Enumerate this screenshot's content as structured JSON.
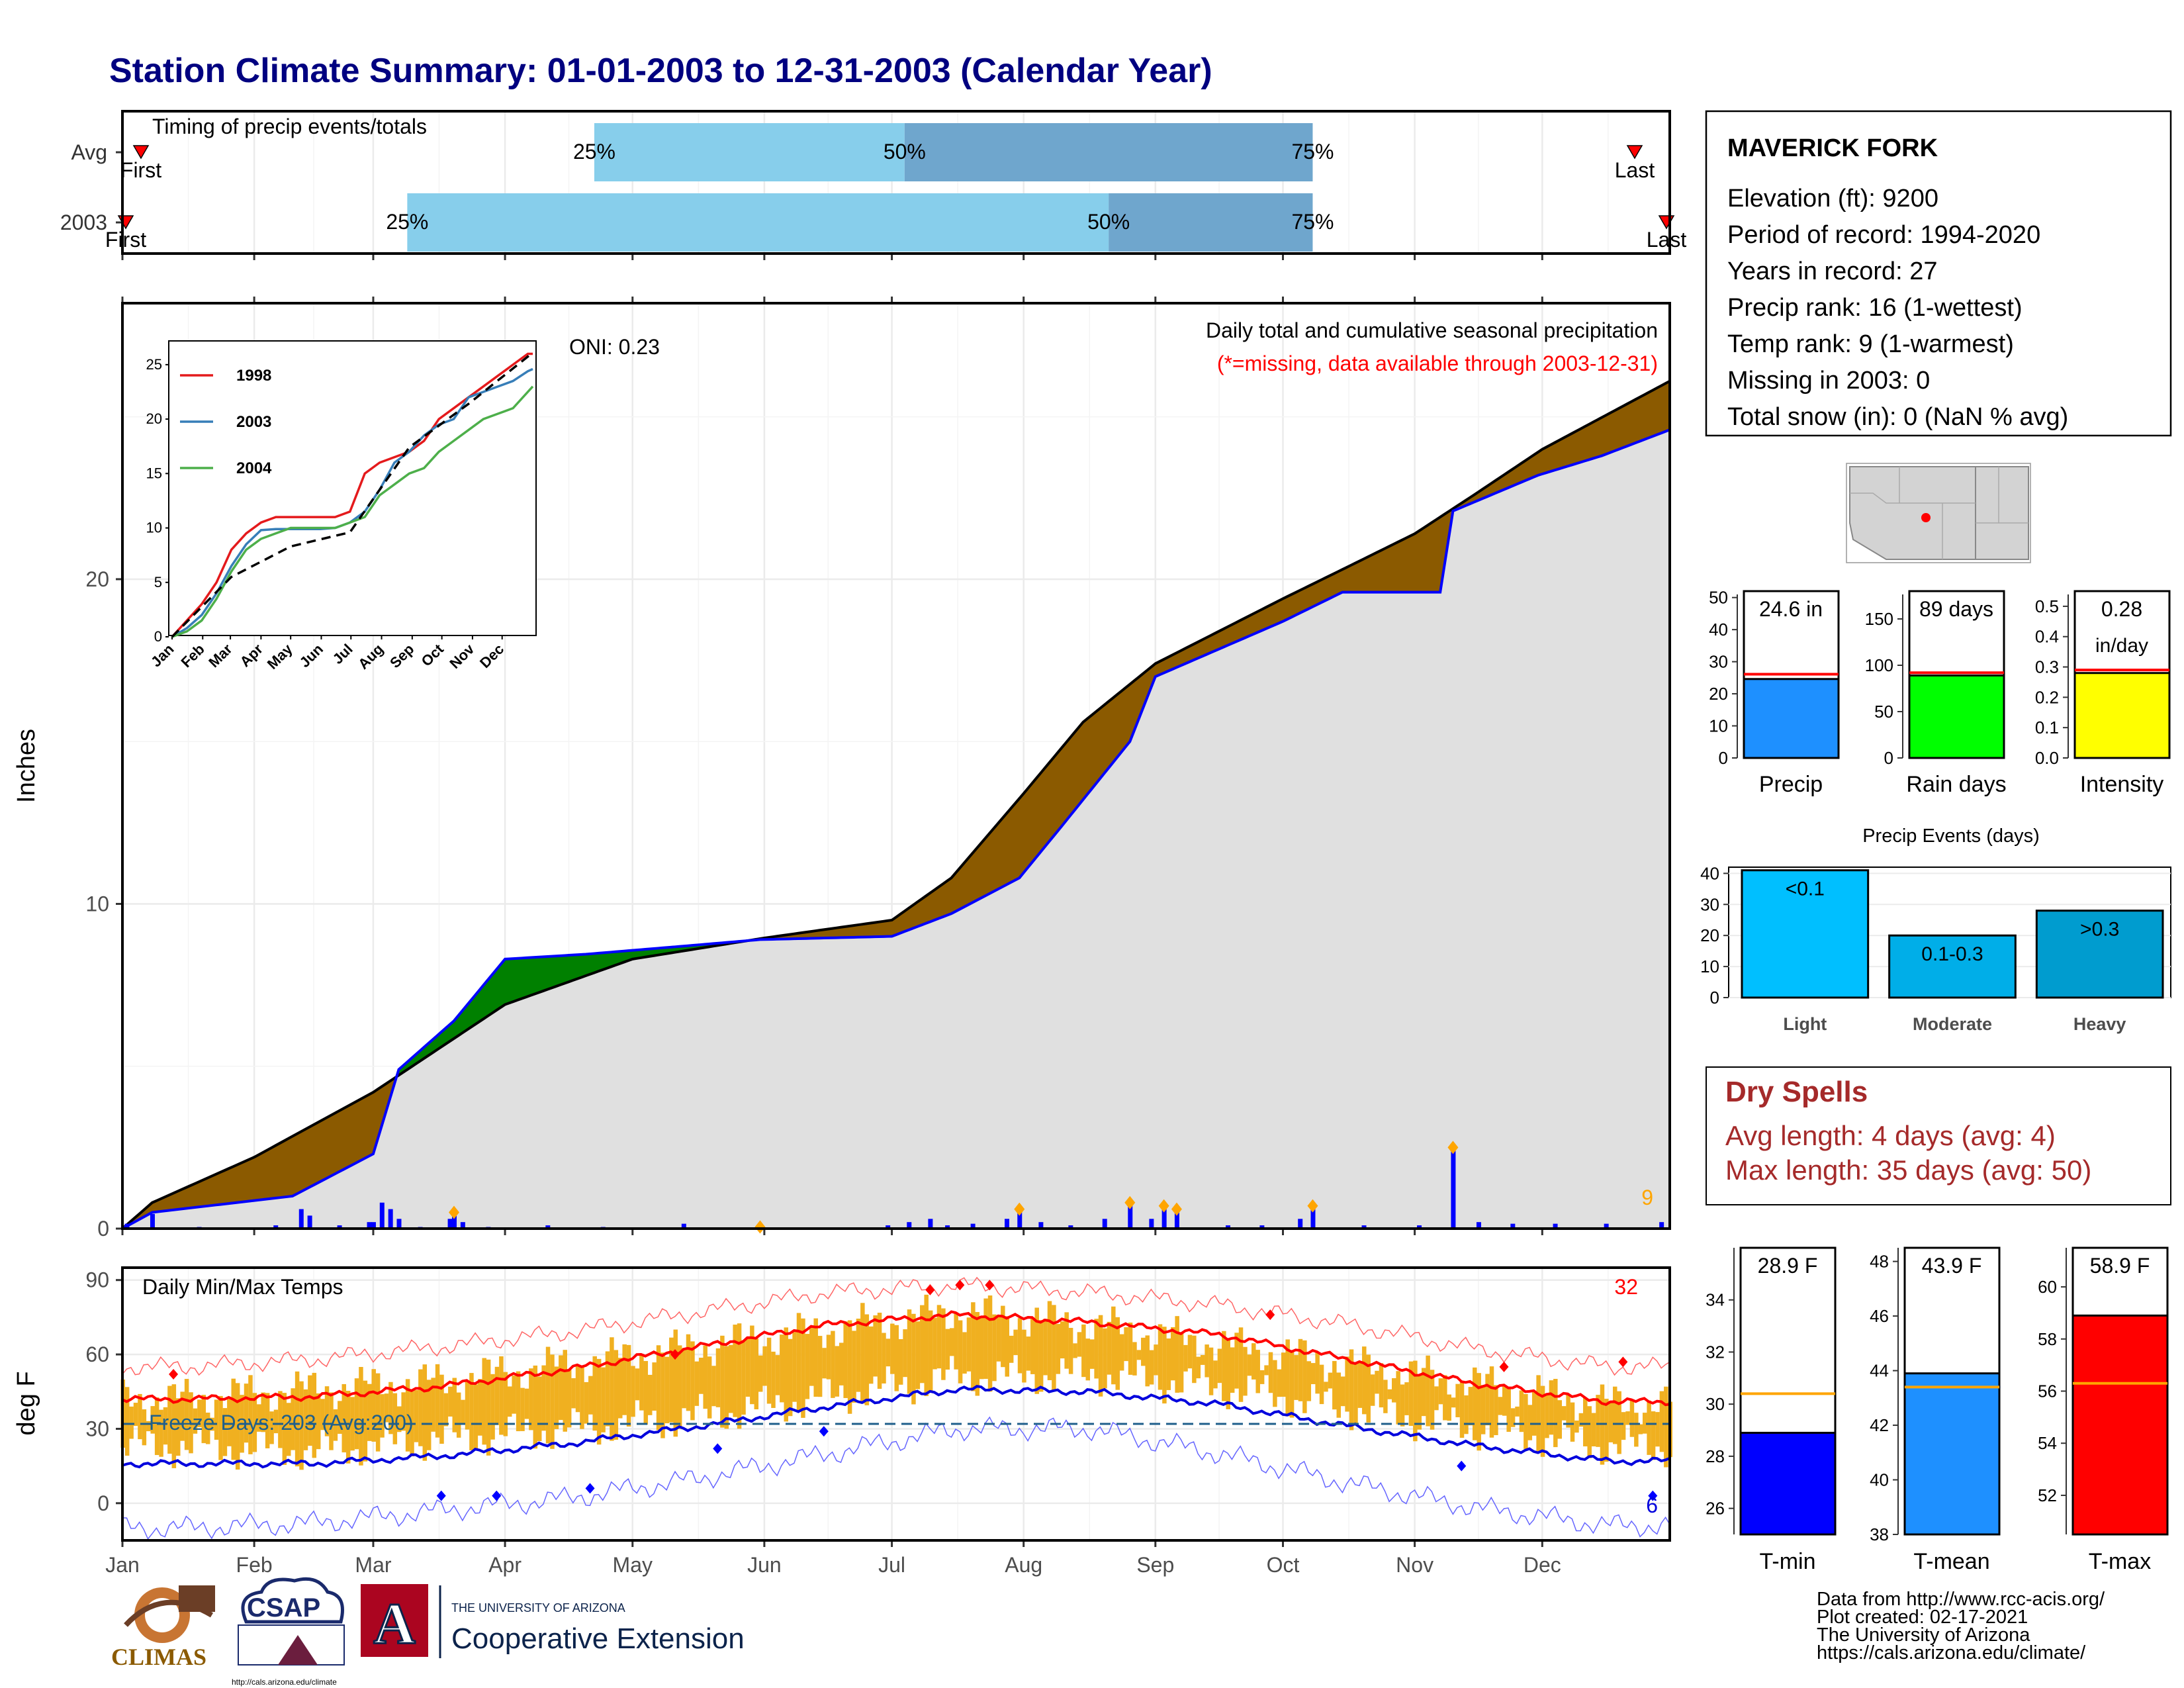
{
  "page_title": "Station Climate Summary: 01-01-2003 to 12-31-2003 (Calendar Year)",
  "months": [
    "Jan",
    "Feb",
    "Mar",
    "Apr",
    "May",
    "Jun",
    "Jul",
    "Aug",
    "Sep",
    "Oct",
    "Nov",
    "Dec"
  ],
  "colors": {
    "title": "#000080",
    "timing_light": "#87ceeb",
    "timing_dark": "#6fa6cd",
    "cum_above": "#8b5a00",
    "cum_below": "#008000",
    "cum_fill": "#e0e0e0",
    "precip_bar": "#0000ff",
    "temp_bar": "#f0b020",
    "tmax_line": "#ff0000",
    "tmin_line": "#0000dd",
    "freeze_line": "#1f5f8b",
    "dry_spell_text": "#a52a2a"
  },
  "timing": {
    "label": "Timing of precip events/totals",
    "rows": [
      "Avg",
      "2003"
    ],
    "first_label": "First",
    "last_label": "Last",
    "avg": {
      "p25": "2003-04-22",
      "p50": "2003-07-04",
      "p75": "2003-10-08"
    },
    "y2003": {
      "p25": "2003-03-09",
      "p50": "2003-08-21",
      "p75": "2003-10-08"
    },
    "pct_labels": [
      "25%",
      "50%",
      "75%"
    ]
  },
  "cumulative": {
    "ylabel": "Inches",
    "yticks": [
      0,
      10,
      20
    ],
    "ylim": [
      0,
      28.5
    ],
    "oni": "ONI: 0.23",
    "title": "Daily total and cumulative seasonal precipitation",
    "missing_note": "(*=missing, data available through 2003-12-31)",
    "missing_note_color": "#ff0000",
    "high_precip_count": "9",
    "avg_cumulative": {
      "dates": [
        "2003-01-01",
        "2003-01-08",
        "2003-02-01",
        "2003-03-01",
        "2003-04-01",
        "2003-05-01",
        "2003-06-01",
        "2003-07-01",
        "2003-07-15",
        "2003-08-01",
        "2003-08-15",
        "2003-09-01",
        "2003-10-01",
        "2003-10-15",
        "2003-11-01",
        "2003-11-15",
        "2003-12-01",
        "2003-12-31"
      ],
      "values": [
        0,
        0.8,
        2.2,
        4.2,
        6.9,
        8.3,
        8.95,
        9.5,
        10.8,
        13.4,
        15.6,
        17.4,
        19.4,
        20.3,
        21.4,
        22.6,
        24.0,
        26.1
      ]
    },
    "obs_cumulative": {
      "dates": [
        "2003-01-01",
        "2003-01-08",
        "2003-02-10",
        "2003-03-01",
        "2003-03-07",
        "2003-03-20",
        "2003-04-01",
        "2003-04-20",
        "2003-05-13",
        "2003-05-31",
        "2003-07-01",
        "2003-07-15",
        "2003-07-31",
        "2003-08-10",
        "2003-08-26",
        "2003-09-01",
        "2003-10-01",
        "2003-10-15",
        "2003-11-07",
        "2003-11-10",
        "2003-11-30",
        "2003-12-15",
        "2003-12-31"
      ],
      "values": [
        0,
        0.5,
        1.0,
        2.3,
        4.9,
        6.4,
        8.3,
        8.45,
        8.7,
        8.9,
        9.0,
        9.7,
        10.8,
        12.4,
        15.0,
        17.0,
        18.7,
        19.6,
        19.6,
        22.1,
        23.2,
        23.8,
        24.6
      ]
    },
    "daily_precip": {
      "dates": [
        "2003-01-02",
        "2003-01-08",
        "2003-01-19",
        "2003-02-06",
        "2003-02-12",
        "2003-02-14",
        "2003-02-21",
        "2003-02-28",
        "2003-03-01",
        "2003-03-03",
        "2003-03-05",
        "2003-03-07",
        "2003-03-12",
        "2003-03-19",
        "2003-03-20",
        "2003-03-22",
        "2003-03-28",
        "2003-04-11",
        "2003-04-24",
        "2003-05-13",
        "2003-05-31",
        "2003-06-30",
        "2003-07-05",
        "2003-07-10",
        "2003-07-14",
        "2003-07-20",
        "2003-07-28",
        "2003-07-31",
        "2003-08-05",
        "2003-08-12",
        "2003-08-20",
        "2003-08-26",
        "2003-08-31",
        "2003-09-03",
        "2003-09-06",
        "2003-09-18",
        "2003-09-26",
        "2003-10-05",
        "2003-10-08",
        "2003-10-20",
        "2003-11-02",
        "2003-11-10",
        "2003-11-16",
        "2003-11-24",
        "2003-12-04",
        "2003-12-16",
        "2003-12-29"
      ],
      "values": [
        0.15,
        0.45,
        0.05,
        0.1,
        0.6,
        0.4,
        0.1,
        0.2,
        0.2,
        0.8,
        0.6,
        0.3,
        0.05,
        0.3,
        0.5,
        0.2,
        0.05,
        0.1,
        0.05,
        0.15,
        0.05,
        0.1,
        0.2,
        0.3,
        0.1,
        0.15,
        0.3,
        0.6,
        0.2,
        0.1,
        0.3,
        0.8,
        0.3,
        0.7,
        0.6,
        0.1,
        0.1,
        0.3,
        0.7,
        0.1,
        0.1,
        2.5,
        0.2,
        0.15,
        0.15,
        0.15,
        0.2
      ]
    },
    "highlight_dates": [
      "2003-03-20",
      "2003-05-31",
      "2003-07-31",
      "2003-08-26",
      "2003-09-03",
      "2003-09-06",
      "2003-10-08",
      "2003-11-10"
    ],
    "inset": {
      "yticks": [
        0,
        5,
        10,
        15,
        20,
        25
      ],
      "series": [
        {
          "name": "1998",
          "color": "#e41a1c",
          "x": [
            0,
            15,
            30,
            45,
            60,
            75,
            90,
            105,
            120,
            135,
            150,
            165,
            180,
            195,
            210,
            225,
            240,
            255,
            270,
            285,
            300,
            315,
            330,
            345,
            360,
            365
          ],
          "y": [
            0,
            1.5,
            3,
            5,
            8,
            9.5,
            10.5,
            11,
            11,
            11,
            11,
            11,
            11.5,
            15,
            16,
            16.5,
            17,
            18,
            20,
            21,
            22,
            23,
            24,
            25,
            26,
            26
          ]
        },
        {
          "name": "2003",
          "color": "#377eb8",
          "x": [
            0,
            15,
            30,
            45,
            60,
            75,
            90,
            105,
            120,
            135,
            150,
            165,
            180,
            195,
            210,
            225,
            240,
            255,
            270,
            285,
            300,
            315,
            330,
            345,
            360,
            365
          ],
          "y": [
            0,
            0.8,
            2,
            4,
            6.5,
            8.5,
            9.8,
            9.9,
            9.9,
            9.9,
            9.9,
            10,
            10.5,
            11.5,
            13.5,
            16,
            17,
            18.5,
            19.5,
            20,
            22,
            22.5,
            23,
            23.5,
            24.4,
            24.6
          ]
        },
        {
          "name": "2004",
          "color": "#4daf4a",
          "x": [
            0,
            15,
            30,
            45,
            60,
            75,
            90,
            105,
            120,
            135,
            150,
            165,
            180,
            195,
            210,
            225,
            240,
            255,
            270,
            285,
            300,
            315,
            330,
            345,
            360,
            365
          ],
          "y": [
            0,
            0.5,
            1.5,
            3.5,
            6,
            8,
            9,
            9.5,
            10,
            10,
            10,
            10,
            10.5,
            11,
            13,
            14,
            15,
            15.5,
            17,
            18,
            19,
            20,
            20.5,
            21,
            22.5,
            23
          ]
        }
      ],
      "avg_x": [
        0,
        60,
        120,
        180,
        240,
        300,
        365
      ],
      "avg_y": [
        0,
        5.5,
        8.3,
        9.6,
        17.4,
        21.4,
        26.1
      ]
    }
  },
  "temps": {
    "ylabel": "deg F",
    "yticks": [
      0,
      30,
      60,
      90
    ],
    "ylim": [
      -15,
      95
    ],
    "label": "Daily Min/Max Temps",
    "freeze_label": "Freeze Days: 203 (Avg:200)",
    "freeze_value": 32,
    "count_high": "32",
    "count_low": "6",
    "tmax_monthly": [
      42,
      46,
      49,
      56,
      63,
      70,
      77,
      72,
      64,
      56,
      48,
      40
    ],
    "tmin_monthly": [
      17,
      15,
      20,
      24,
      29,
      37,
      45,
      46,
      41,
      32,
      24,
      17
    ],
    "tmax_normal_monthly": [
      42,
      43,
      47,
      54,
      63,
      72,
      76,
      73,
      68,
      58,
      48,
      41
    ],
    "tmin_normal_monthly": [
      16,
      16,
      19,
      24,
      31,
      39,
      46,
      45,
      40,
      31,
      23,
      17
    ],
    "record_high_monthly": [
      55,
      58,
      63,
      69,
      77,
      85,
      88,
      85,
      80,
      72,
      62,
      55
    ],
    "record_low_monthly": [
      -10,
      -8,
      -3,
      2,
      10,
      20,
      30,
      30,
      20,
      8,
      -2,
      -9
    ]
  },
  "station": {
    "name": "MAVERICK FORK",
    "lines": [
      "Elevation (ft): 9200",
      "Period of record: 1994-2020",
      "Years in record: 27",
      "Precip rank: 16 (1-wettest)",
      "Temp rank: 9 (1-warmest)",
      "Missing in 2003: 0",
      "Total snow (in): 0 (NaN % avg)"
    ]
  },
  "summary_bars": [
    {
      "label": "Precip",
      "value": 24.6,
      "value_label": "24.6 in",
      "avg": 26.1,
      "yticks": [
        0,
        10,
        20,
        30,
        40,
        50
      ],
      "ylim": [
        0,
        52
      ],
      "color": "#1e90ff"
    },
    {
      "label": "Rain days",
      "value": 89,
      "value_label": "89 days",
      "avg": 92,
      "yticks": [
        0,
        50,
        100,
        150
      ],
      "ylim": [
        0,
        180
      ],
      "color": "#00ff00"
    },
    {
      "label": "Intensity",
      "value": 0.28,
      "value_label": "0.28",
      "value_label2": "in/day",
      "avg": 0.29,
      "yticks": [
        "0.0",
        "0.1",
        "0.2",
        "0.3",
        "0.4",
        "0.5"
      ],
      "ylim": [
        0,
        0.55
      ],
      "color": "#ffff00"
    }
  ],
  "precip_events": {
    "title": "Precip Events (days)",
    "yticks": [
      0,
      10,
      20,
      30,
      40
    ],
    "ylim": [
      0,
      42
    ],
    "categories": [
      "Light",
      "Moderate",
      "Heavy"
    ],
    "values": [
      41,
      20,
      28
    ],
    "bar_labels": [
      "<0.1",
      "0.1-0.3",
      ">0.3"
    ],
    "colors": [
      "#00bfff",
      "#00aee8",
      "#009ccf"
    ]
  },
  "dry_spells": {
    "title": "Dry Spells",
    "lines": [
      "Avg length: 4 days (avg: 4)",
      "Max length: 35 days (avg: 50)"
    ]
  },
  "temp_bars": [
    {
      "label": "T-min",
      "value": 28.9,
      "value_label": "28.9 F",
      "avg": 30.4,
      "yticks": [
        26,
        28,
        30,
        32,
        34
      ],
      "ylim": [
        25,
        36
      ],
      "color": "#0000ff"
    },
    {
      "label": "T-mean",
      "value": 43.9,
      "value_label": "43.9 F",
      "avg": 43.4,
      "yticks": [
        38,
        40,
        42,
        44,
        46,
        48
      ],
      "ylim": [
        38,
        48.5
      ],
      "color": "#1e90ff"
    },
    {
      "label": "T-max",
      "value": 58.9,
      "value_label": "58.9 F",
      "avg": 56.3,
      "yticks": [
        52,
        54,
        56,
        58,
        60
      ],
      "ylim": [
        50.5,
        61.5
      ],
      "color": "#ff0000"
    }
  ],
  "credits": [
    "Data from http://www.rcc-acis.org/",
    "Plot created: 02-17-2021",
    "The University of Arizona",
    "https://cals.arizona.edu/climate/"
  ],
  "logos": {
    "climas": "CLIMAS",
    "csap": "CSAP",
    "csap_url": "http://cals.arizona.edu/climate",
    "ua_line1": "THE UNIVERSITY OF ARIZONA",
    "ua_line2": "Cooperative Extension",
    "ua_letter": "A"
  }
}
